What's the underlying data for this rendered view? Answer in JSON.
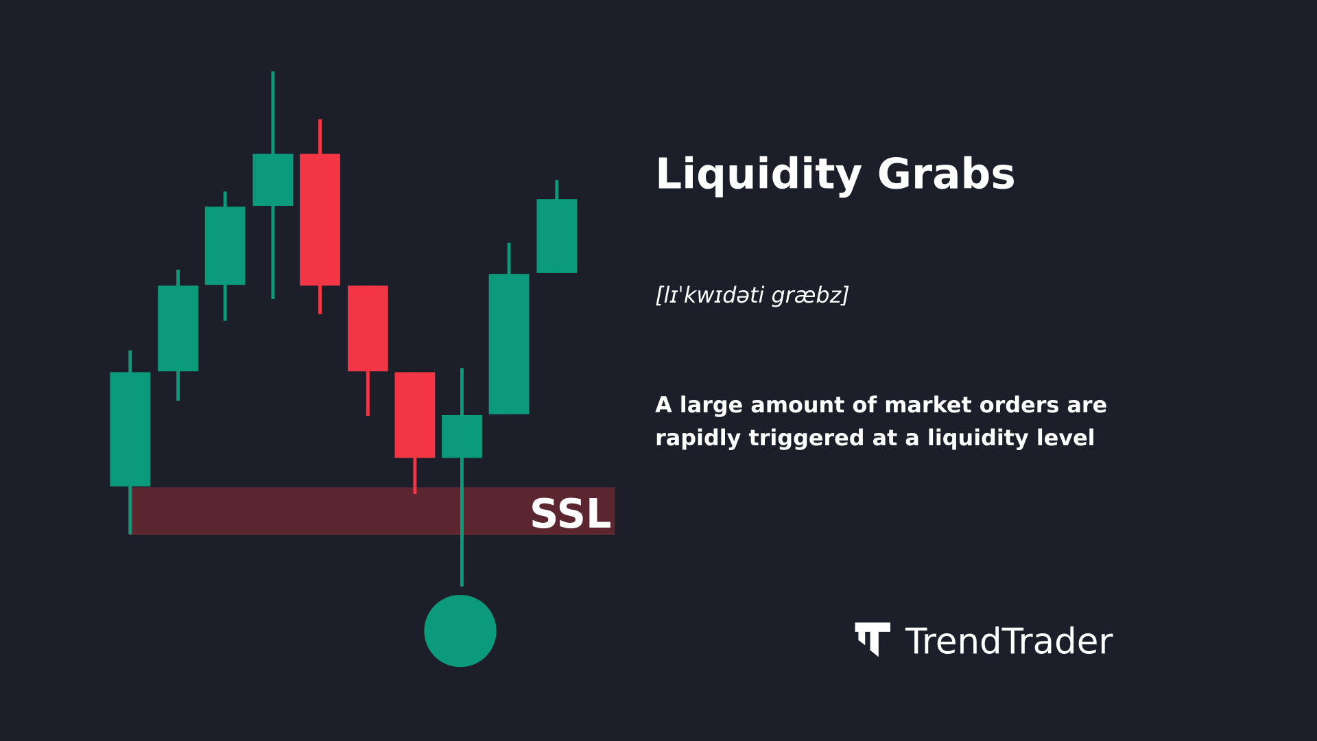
{
  "title": "Liquidity Grabs",
  "pronunciation": "[lɪˈkwɪdəti græbz]",
  "description": [
    "A large amount of market orders are",
    "rapidly triggered at a liquidity level"
  ],
  "zone_label": "SSL",
  "brand": "TrendTrader"
}
